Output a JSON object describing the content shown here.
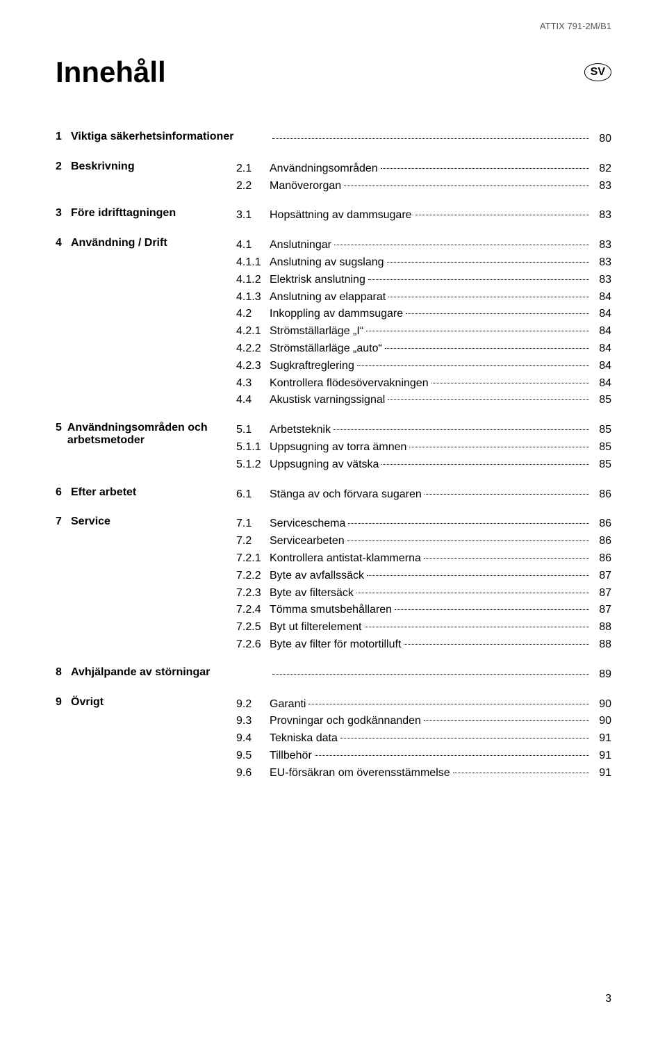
{
  "header_right": "ATTIX 791-2M/B1",
  "title": "Innehåll",
  "lang_badge": "SV",
  "page_number": "3",
  "sections": [
    {
      "num": "1",
      "title": "Viktiga säkerhetsinformationer",
      "entries": [
        {
          "num": "",
          "text": "",
          "page": "80"
        }
      ]
    },
    {
      "num": "2",
      "title": "Beskrivning",
      "entries": [
        {
          "num": "2.1",
          "text": "Användningsområden",
          "page": "82"
        },
        {
          "num": "2.2",
          "text": "Manöverorgan",
          "page": "83"
        }
      ]
    },
    {
      "num": "3",
      "title": "Före idrifttagningen",
      "entries": [
        {
          "num": "3.1",
          "text": "Hopsättning av dammsugare",
          "page": "83"
        }
      ]
    },
    {
      "num": "4",
      "title": "Användning / Drift",
      "entries": [
        {
          "num": "4.1",
          "text": "Anslutningar",
          "page": "83"
        },
        {
          "num": "4.1.1",
          "text": "Anslutning av sugslang",
          "page": "83"
        },
        {
          "num": "4.1.2",
          "text": "Elektrisk anslutning",
          "page": "83"
        },
        {
          "num": "4.1.3",
          "text": "Anslutning av elapparat",
          "page": "84"
        },
        {
          "num": "4.2",
          "text": "Inkoppling av dammsugare",
          "page": "84"
        },
        {
          "num": "4.2.1",
          "text": "Strömställarläge „I“",
          "page": "84"
        },
        {
          "num": "4.2.2",
          "text": "Strömställarläge „auto“",
          "page": "84"
        },
        {
          "num": "4.2.3",
          "text": "Sugkraftreglering",
          "page": "84"
        },
        {
          "num": "4.3",
          "text": "Kontrollera flödesövervakningen",
          "page": "84"
        },
        {
          "num": "4.4",
          "text": "Akustisk varningssignal",
          "page": "85"
        }
      ]
    },
    {
      "num": "5",
      "title": "Användningsområden och arbetsmetoder",
      "entries": [
        {
          "num": "5.1",
          "text": "Arbetsteknik",
          "page": "85"
        },
        {
          "num": "5.1.1",
          "text": "Uppsugning av torra ämnen",
          "page": "85"
        },
        {
          "num": "5.1.2",
          "text": "Uppsugning av vätska",
          "page": "85"
        }
      ]
    },
    {
      "num": "6",
      "title": "Efter arbetet",
      "entries": [
        {
          "num": "6.1",
          "text": "Stänga av och förvara sugaren",
          "page": "86"
        }
      ]
    },
    {
      "num": "7",
      "title": "Service",
      "entries": [
        {
          "num": "7.1",
          "text": "Serviceschema",
          "page": "86"
        },
        {
          "num": "7.2",
          "text": "Servicearbeten",
          "page": "86"
        },
        {
          "num": "7.2.1",
          "text": "Kontrollera antistat-klammerna",
          "page": "86"
        },
        {
          "num": "7.2.2",
          "text": "Byte av avfallssäck",
          "page": "87"
        },
        {
          "num": "7.2.3",
          "text": "Byte av filtersäck",
          "page": "87"
        },
        {
          "num": "7.2.4",
          "text": "Tömma smutsbehållaren",
          "page": "87"
        },
        {
          "num": "7.2.5",
          "text": "Byt ut filterelement",
          "page": "88"
        },
        {
          "num": "7.2.6",
          "text": "Byte av filter för motortilluft",
          "page": "88"
        }
      ]
    },
    {
      "num": "8",
      "title": "Avhjälpande av störningar",
      "entries": [
        {
          "num": "",
          "text": "",
          "page": "89"
        }
      ]
    },
    {
      "num": "9",
      "title": "Övrigt",
      "entries": [
        {
          "num": "9.2",
          "text": "Garanti",
          "page": "90"
        },
        {
          "num": "9.3",
          "text": "Provningar och godkännanden",
          "page": "90"
        },
        {
          "num": "9.4",
          "text": "Tekniska data",
          "page": "91"
        },
        {
          "num": "9.5",
          "text": "Tillbehör",
          "page": "91"
        },
        {
          "num": "9.6",
          "text": "EU-försäkran om överensstämmelse",
          "page": "91"
        }
      ]
    }
  ]
}
